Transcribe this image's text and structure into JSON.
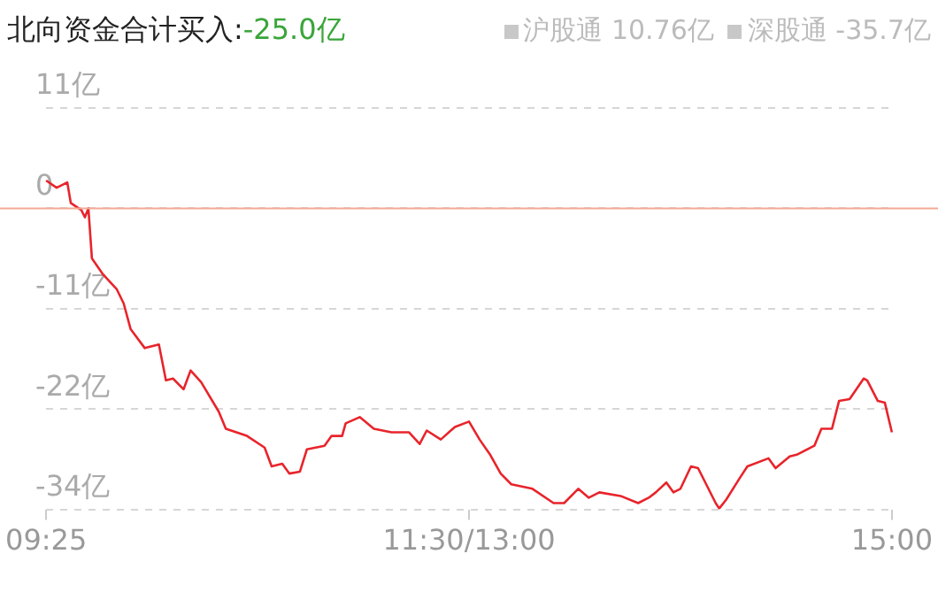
{
  "chart_data": {
    "type": "line",
    "title": "北向资金合计买入:",
    "subtitle": "-25.0亿",
    "annotations": [
      "沪股通 10.76亿",
      "深股通 -35.7亿"
    ],
    "categories": [
      "09:25",
      null,
      null,
      null,
      null,
      null,
      null,
      null,
      null,
      null,
      null,
      null,
      null,
      null,
      null,
      null,
      null,
      null,
      null,
      null,
      null,
      null,
      null,
      null,
      null,
      null,
      null,
      null,
      null,
      null,
      null,
      null,
      null,
      null,
      null,
      null,
      null,
      null,
      null,
      null,
      null,
      null,
      null,
      null,
      null,
      null,
      null,
      null,
      null,
      null,
      null,
      null,
      null,
      null,
      null,
      null,
      null,
      null,
      null,
      null,
      null,
      null,
      null,
      null,
      null,
      null,
      null,
      null,
      null,
      null,
      null,
      null,
      null,
      null,
      null,
      null,
      null,
      null,
      null,
      null,
      null,
      null,
      null,
      null,
      null,
      null,
      null,
      null,
      null,
      null,
      null,
      null,
      null,
      null,
      null,
      null,
      null,
      null,
      null,
      null,
      null,
      null,
      null,
      null,
      null,
      null,
      null,
      null,
      null,
      null,
      null,
      null,
      null,
      null,
      null,
      null,
      null,
      null,
      null,
      null,
      "11:30/13:00",
      null,
      null,
      null,
      null,
      null,
      null,
      null,
      null,
      null,
      null,
      null,
      null,
      null,
      null,
      null,
      null,
      null,
      null,
      null,
      null,
      null,
      null,
      null,
      null,
      null,
      null,
      null,
      null,
      null,
      null,
      null,
      null,
      null,
      null,
      null,
      null,
      null,
      null,
      null,
      null,
      null,
      null,
      null,
      null,
      null,
      null,
      null,
      null,
      null,
      null,
      null,
      null,
      null,
      null,
      null,
      null,
      null,
      null,
      null,
      null,
      null,
      null,
      null,
      null,
      null,
      null,
      null,
      null,
      null,
      null,
      null,
      null,
      null,
      null,
      null,
      null,
      null,
      null,
      null,
      null,
      null,
      null,
      null,
      null,
      null,
      null,
      null,
      null,
      null,
      null,
      null,
      null,
      null,
      null,
      null,
      null,
      null,
      null,
      null,
      null,
      null,
      null,
      null,
      null,
      null,
      null,
      null,
      null,
      null,
      null,
      null,
      null,
      null,
      null,
      null,
      null,
      null,
      null,
      null,
      "15:00"
    ],
    "series": [
      {
        "color": "#e8242b",
        "values": [
          3.1,
          null,
          null,
          2.3,
          null,
          null,
          2.9,
          0.6,
          null,
          null,
          -0.2,
          -1.0,
          0,
          -5.6,
          null,
          null,
          -7.3,
          null,
          null,
          null,
          -9.0,
          null,
          -10.6,
          null,
          -13.5,
          null,
          null,
          null,
          -15.6,
          null,
          null,
          null,
          -15.2,
          null,
          -19.2,
          null,
          -19.0,
          null,
          null,
          -20.2,
          null,
          -18.1,
          null,
          null,
          -19.4,
          null,
          null,
          null,
          null,
          -22.7,
          null,
          -24.6,
          null,
          null,
          null,
          null,
          null,
          -25.4,
          null,
          null,
          null,
          null,
          -26.7,
          null,
          -28.8,
          null,
          null,
          -28.5,
          null,
          -29.6,
          null,
          null,
          -29.4,
          null,
          -26.9,
          null,
          null,
          null,
          null,
          -26.5,
          null,
          -25.4,
          null,
          null,
          -25.4,
          -24.0,
          null,
          null,
          null,
          -23.3,
          null,
          null,
          null,
          -24.6,
          null,
          null,
          null,
          null,
          -25.0,
          null,
          null,
          null,
          null,
          -25.0,
          null,
          null,
          -26.3,
          null,
          -24.8,
          null,
          null,
          null,
          -25.8,
          null,
          null,
          null,
          -24.4,
          null,
          null,
          null,
          -23.8,
          null,
          null,
          -25.8,
          null,
          null,
          -27.5,
          null,
          null,
          -29.6,
          null,
          null,
          -30.8,
          null,
          null,
          null,
          null,
          null,
          -31.3,
          null,
          null,
          null,
          null,
          null,
          -32.9,
          null,
          null,
          -32.9,
          null,
          null,
          null,
          -31.3,
          null,
          null,
          -32.3,
          null,
          null,
          -31.7,
          null,
          null,
          null,
          null,
          null,
          -32.1,
          null,
          null,
          null,
          null,
          -32.9,
          null,
          null,
          -32.3,
          null,
          -31.7,
          null,
          null,
          -30.6,
          null,
          -31.7,
          null,
          -31.3,
          null,
          null,
          -28.8,
          null,
          -29.0,
          null,
          null,
          null,
          null,
          -32.9,
          -33.5,
          null,
          -32.5,
          null,
          null,
          null,
          -30.0,
          null,
          -28.8,
          null,
          null,
          null,
          null,
          null,
          -27.9,
          null,
          -29.0,
          null,
          null,
          null,
          -27.7,
          null,
          -27.5,
          null,
          null,
          null,
          null,
          -26.5,
          null,
          -24.6,
          null,
          null,
          -24.6,
          null,
          -21.5,
          null,
          null,
          -21.3,
          null,
          null,
          null,
          -19.0,
          -19.2,
          null,
          null,
          -21.5,
          null,
          -21.7,
          null,
          -25.0
        ]
      }
    ],
    "ylim": [
      -33.6,
      11.2
    ],
    "yticks": [
      {
        "value": 11.2,
        "label": "11亿"
      },
      {
        "value": 0,
        "label": "0"
      },
      {
        "value": -11.2,
        "label": "-11亿"
      },
      {
        "value": -22.4,
        "label": "-22亿"
      },
      {
        "value": -33.6,
        "label": "-34亿"
      }
    ],
    "ref_lines": [
      {
        "axis": "y",
        "value": 0,
        "color": "#f4a996"
      }
    ],
    "grid": "y",
    "legend": false,
    "marker": "none",
    "line_style": "solid"
  }
}
